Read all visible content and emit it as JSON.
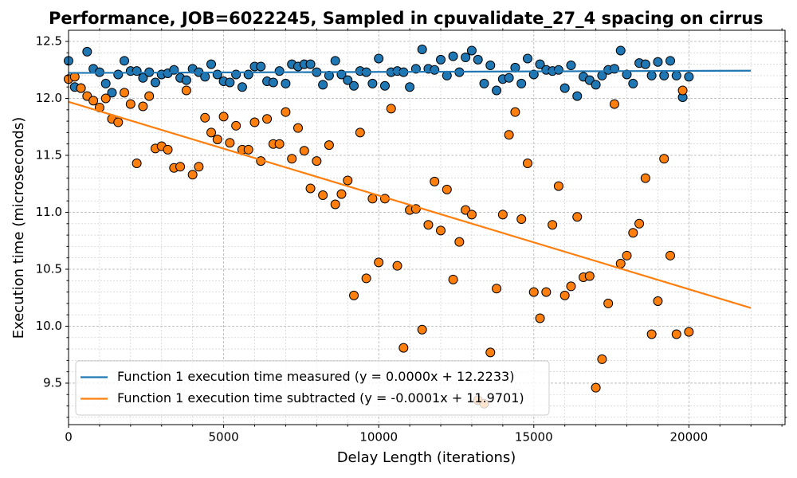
{
  "chart_data": {
    "type": "scatter",
    "title": "Performance, JOB=6022245, Sampled in cpuvalidate_27_4 spacing on cirrus",
    "x_label": "Delay Length (iterations)",
    "y_label": "Execution time (microseconds)",
    "xlim": [
      0,
      23100
    ],
    "ylim": [
      9.136,
      12.598
    ],
    "xticks": [
      0,
      5000,
      10000,
      15000,
      20000
    ],
    "yticks": [
      9.5,
      {
        "value": 10.0,
        "label": "10.0"
      },
      10.5,
      {
        "value": 11.0,
        "label": "11.0"
      },
      11.5,
      {
        "value": 12.0,
        "label": "12.0"
      },
      12.5
    ],
    "xminorticks": [
      1000,
      2000,
      3000,
      4000,
      6000,
      7000,
      8000,
      9000,
      11000,
      12000,
      13000,
      14000,
      16000,
      17000,
      18000,
      19000,
      21000,
      22000,
      23000
    ],
    "yminorticks": [
      9.2,
      9.3,
      9.4,
      9.6,
      9.7,
      9.8,
      9.9,
      10.1,
      10.2,
      10.3,
      10.4,
      10.6,
      10.7,
      10.8,
      10.9,
      11.1,
      11.2,
      11.3,
      11.4,
      11.6,
      11.7,
      11.8,
      11.9,
      12.1,
      12.2,
      12.3,
      12.4
    ],
    "grid": true,
    "legend": "lower left",
    "x": [
      0,
      200,
      400,
      600,
      800,
      1000,
      1200,
      1400,
      1600,
      1800,
      2000,
      2200,
      2400,
      2600,
      2800,
      3000,
      3200,
      3400,
      3600,
      3800,
      4000,
      4200,
      4400,
      4600,
      4800,
      5000,
      5200,
      5400,
      5600,
      5800,
      6000,
      6200,
      6400,
      6600,
      6800,
      7000,
      7200,
      7400,
      7600,
      7800,
      8000,
      8200,
      8400,
      8600,
      8800,
      9000,
      9200,
      9400,
      9600,
      9800,
      10000,
      10200,
      10400,
      10600,
      10800,
      11000,
      11200,
      11400,
      11600,
      11800,
      12000,
      12200,
      12400,
      12600,
      12800,
      13000,
      13200,
      13400,
      13600,
      13800,
      14000,
      14200,
      14400,
      14600,
      14800,
      15000,
      15200,
      15400,
      15600,
      15800,
      16000,
      16200,
      16400,
      16600,
      16800,
      17000,
      17200,
      17400,
      17600,
      17800,
      18000,
      18200,
      18400,
      18600,
      18800,
      19000,
      19200,
      19400,
      19600,
      19800,
      20000
    ],
    "scatter": [
      {
        "color": "#1f77b4",
        "values": [
          12.33,
          12.1,
          12.09,
          12.41,
          12.26,
          12.23,
          12.13,
          12.05,
          12.21,
          12.33,
          12.24,
          12.24,
          12.18,
          12.23,
          12.14,
          12.21,
          12.22,
          12.25,
          12.18,
          12.16,
          12.26,
          12.23,
          12.19,
          12.3,
          12.21,
          12.15,
          12.14,
          12.21,
          12.1,
          12.21,
          12.28,
          12.28,
          12.15,
          12.14,
          12.24,
          12.13,
          12.3,
          12.28,
          12.3,
          12.3,
          12.23,
          12.12,
          12.2,
          12.33,
          12.21,
          12.16,
          12.11,
          12.24,
          12.23,
          12.13,
          12.35,
          12.11,
          12.23,
          12.24,
          12.23,
          12.1,
          12.26,
          12.43,
          12.26,
          12.25,
          12.34,
          12.2,
          12.37,
          12.23,
          12.36,
          12.42,
          12.34,
          12.13,
          12.29,
          12.07,
          12.17,
          12.18,
          12.27,
          12.13,
          12.35,
          12.21,
          12.3,
          12.25,
          12.24,
          12.25,
          12.09,
          12.29,
          12.02,
          12.19,
          12.16,
          12.12,
          12.2,
          12.25,
          12.26,
          12.42,
          12.21,
          12.13,
          12.31,
          12.3,
          12.2,
          12.32,
          12.2,
          12.33,
          12.2,
          12.01,
          12.19
        ]
      },
      {
        "color": "#ff7f0e",
        "values": [
          12.17,
          12.19,
          12.09,
          12.02,
          11.98,
          11.92,
          12.0,
          11.82,
          11.79,
          12.05,
          11.95,
          11.43,
          11.93,
          12.02,
          11.56,
          11.58,
          11.55,
          11.39,
          11.4,
          12.07,
          11.33,
          11.4,
          11.83,
          11.7,
          11.64,
          11.84,
          11.61,
          11.76,
          11.55,
          11.55,
          11.79,
          11.45,
          11.82,
          11.6,
          11.6,
          11.88,
          11.47,
          11.74,
          11.54,
          11.21,
          11.45,
          11.15,
          11.59,
          11.07,
          11.16,
          11.28,
          10.27,
          11.7,
          10.42,
          11.12,
          10.56,
          11.12,
          11.91,
          10.53,
          9.81,
          11.02,
          11.03,
          9.97,
          10.89,
          11.27,
          10.84,
          11.2,
          10.41,
          10.74,
          11.02,
          10.98,
          9.35,
          9.32,
          9.77,
          10.33,
          10.98,
          11.68,
          11.88,
          10.94,
          11.43,
          10.3,
          10.07,
          10.3,
          10.89,
          11.23,
          10.27,
          10.35,
          10.96,
          10.43,
          10.44,
          9.46,
          9.71,
          10.2,
          11.95,
          10.55,
          10.62,
          10.82,
          10.9,
          11.3,
          9.93,
          10.22,
          11.47,
          10.62,
          9.93,
          12.07,
          9.95
        ]
      }
    ],
    "series": [
      {
        "name": "Function 1 execution time measured (y = 0.0000x + 12.2233)",
        "color": "#1f77b4",
        "x": [
          0,
          22000
        ],
        "values": [
          12.2233,
          12.2433
        ]
      },
      {
        "name": "Function 1 execution time subtracted (y = -0.0001x + 11.9701)",
        "color": "#ff7f0e",
        "x": [
          0,
          22000
        ],
        "values": [
          11.9701,
          10.1601
        ]
      }
    ]
  }
}
